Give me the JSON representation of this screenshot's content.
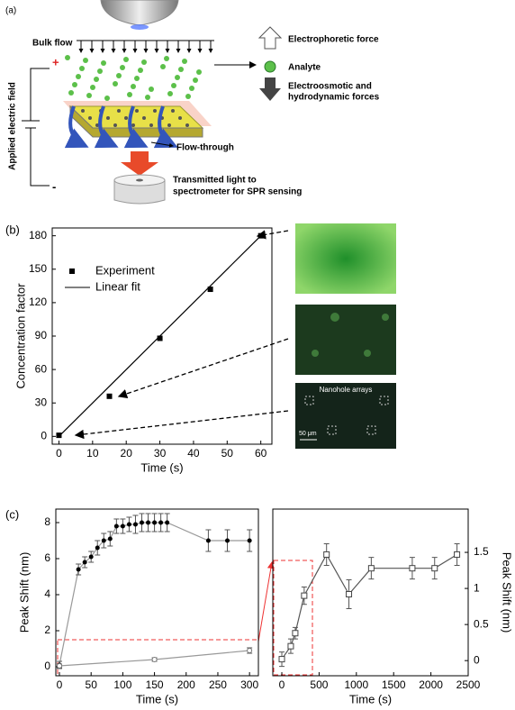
{
  "panel_a": {
    "label": "(a)",
    "bulk_flow": "Bulk flow",
    "field": "Applied electric field",
    "plus": "+",
    "minus": "-",
    "electrophoretic": "Electrophoretic force",
    "analyte": "Analyte",
    "electroosmotic": [
      "Electroosmotic and",
      "hydrodynamic forces"
    ],
    "flow_through": "Flow-through",
    "transmitted": [
      "Transmitted light to",
      "spectrometer for SPR sensing"
    ]
  },
  "panel_b": {
    "label": "(b)",
    "image_label": "Nanohole arrays",
    "scale_bar": "50 μm"
  },
  "panel_c": {
    "label": "(c)"
  },
  "chart_data": [
    {
      "type": "scatter",
      "xlabel": "Time (s)",
      "ylabel": "Concentration factor",
      "xlim": [
        -2,
        63.3
      ],
      "ylim": [
        -7,
        187
      ],
      "xticks": [
        0,
        10,
        20,
        30,
        40,
        50,
        60
      ],
      "yticks": [
        0,
        30,
        60,
        90,
        120,
        150,
        180
      ],
      "legend": "upper left",
      "series": [
        {
          "name": "Experiment",
          "color": "#000000",
          "marker": "square",
          "line": false,
          "x": [
            0,
            15,
            30,
            45,
            60
          ],
          "values": [
            1,
            36,
            88,
            132,
            180
          ]
        },
        {
          "name": "Linear fit",
          "color": "#000000",
          "marker": "none",
          "line": true,
          "x": [
            0,
            60
          ],
          "values": [
            0,
            180
          ]
        }
      ]
    },
    {
      "type": "line",
      "xlabel": "Time (s)",
      "ylabel": "Peak Shift (nm)",
      "y_side": "left",
      "xlim": [
        -5.7,
        314
      ],
      "ylim": [
        -0.5,
        8.75
      ],
      "xticks": [
        0,
        50,
        100,
        150,
        200,
        250,
        300
      ],
      "yticks": [
        0,
        2,
        4,
        6,
        8
      ],
      "series": [
        {
          "color": "#000000",
          "line_color": "#999999",
          "marker": "circle",
          "line": true,
          "x": [
            0,
            30,
            40,
            50,
            60,
            70,
            80,
            90,
            100,
            110,
            120,
            130,
            140,
            150,
            160,
            170,
            235,
            265,
            300
          ],
          "values": [
            0.1,
            5.4,
            5.8,
            6.1,
            6.6,
            7.0,
            7.1,
            7.8,
            7.8,
            7.9,
            7.9,
            8.0,
            8.0,
            8.0,
            8.0,
            8.0,
            7.0,
            7.0,
            7.0
          ],
          "errors": [
            0.2,
            0.3,
            0.3,
            0.3,
            0.4,
            0.4,
            0.4,
            0.4,
            0.4,
            0.4,
            0.5,
            0.5,
            0.5,
            0.5,
            0.5,
            0.5,
            0.6,
            0.6,
            0.6
          ]
        },
        {
          "color": "#777777",
          "line_color": "#999999",
          "marker": "open-circle",
          "line": true,
          "x": [
            0,
            150,
            300
          ],
          "values": [
            0.05,
            0.4,
            0.9
          ],
          "errors": [
            0.1,
            0.1,
            0.15
          ]
        }
      ]
    },
    {
      "type": "line",
      "xlabel": "Time (s)",
      "ylabel": "Peak Shift (nm)",
      "y_side": "right",
      "xlim": [
        -121,
        2500
      ],
      "ylim": [
        -0.21,
        2.1
      ],
      "xticks": [
        0,
        500,
        1000,
        1500,
        2000,
        2500
      ],
      "yticks": [
        0,
        0.5,
        1,
        1.5
      ],
      "series": [
        {
          "color": "#444444",
          "line_color": "#555555",
          "marker": "open-square",
          "line": true,
          "x": [
            0,
            120,
            180,
            300,
            600,
            900,
            1200,
            1750,
            2050,
            2350
          ],
          "values": [
            0.02,
            0.2,
            0.38,
            0.9,
            1.47,
            0.92,
            1.28,
            1.28,
            1.28,
            1.47
          ],
          "errors": [
            0.1,
            0.1,
            0.08,
            0.12,
            0.15,
            0.2,
            0.15,
            0.15,
            0.15,
            0.15
          ]
        }
      ]
    }
  ]
}
